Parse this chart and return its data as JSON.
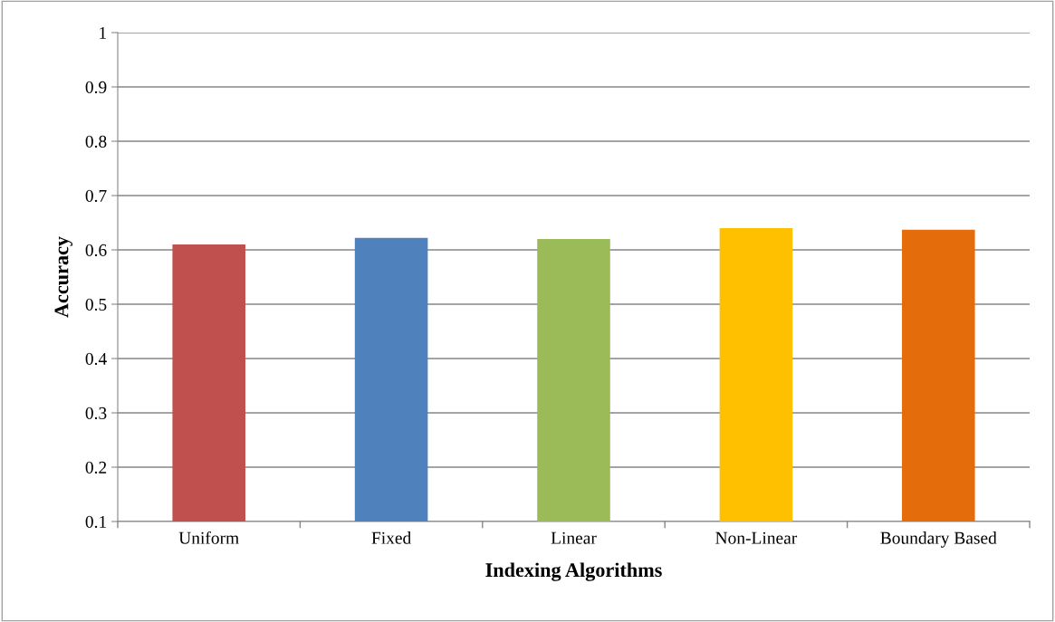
{
  "chart_data": {
    "type": "bar",
    "xlabel": "Indexing Algorithms",
    "ylabel": "Accuracy",
    "categories": [
      "Uniform",
      "Fixed",
      "Linear",
      "Non-Linear",
      "Boundary Based"
    ],
    "values": [
      0.61,
      0.622,
      0.62,
      0.64,
      0.637
    ],
    "colors": [
      "#c0504d",
      "#4f81bd",
      "#9bbb59",
      "#ffc000",
      "#e46c0a"
    ],
    "ylim": [
      0.1,
      1
    ],
    "yticks": [
      0.1,
      0.2,
      0.3,
      0.4,
      0.5,
      0.6,
      0.7,
      0.8,
      0.9,
      1
    ],
    "grid": "y",
    "legend": false
  }
}
